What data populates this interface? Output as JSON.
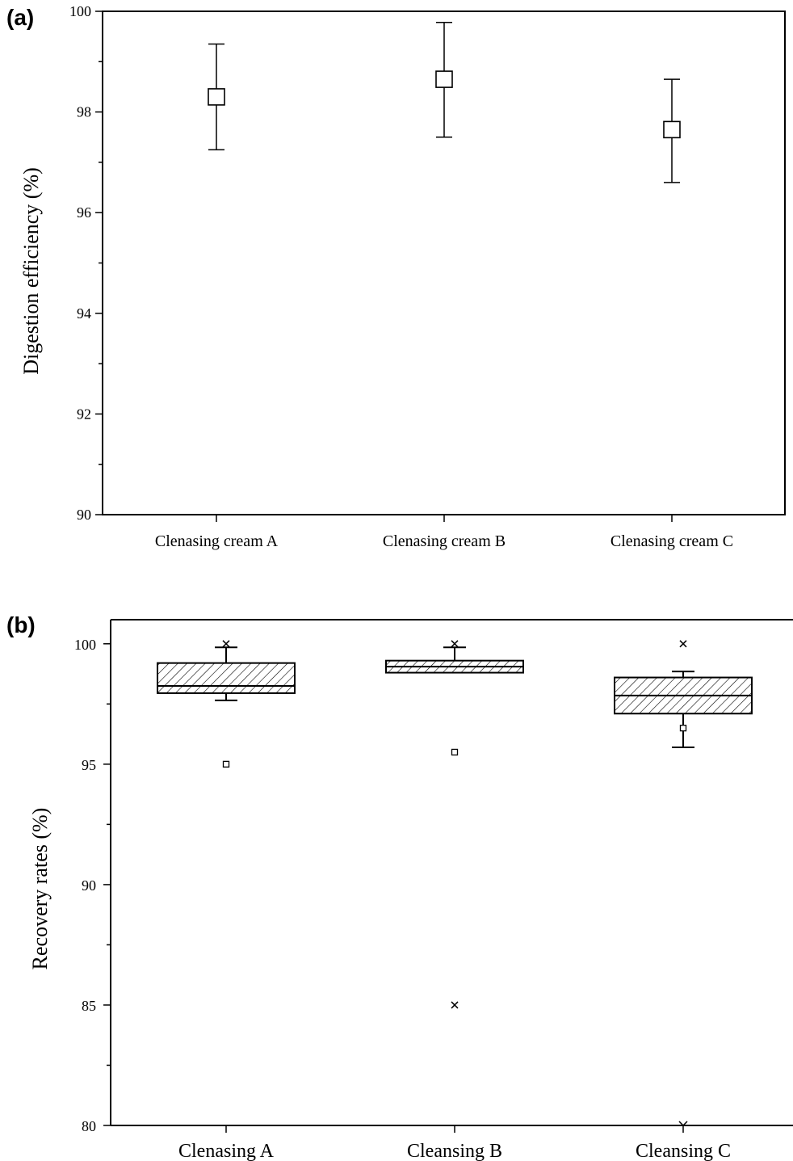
{
  "chart_data": [
    {
      "panel": "(a)",
      "type": "scatter",
      "ylabel": "Digestion efficiency (%)",
      "ylim": [
        90,
        100
      ],
      "yticks": [
        90,
        92,
        94,
        96,
        98,
        100
      ],
      "categories": [
        "Clenasing cream A",
        "Clenasing cream B",
        "Clenasing cream C"
      ],
      "points": [
        {
          "category": "Clenasing cream A",
          "mean": 98.3,
          "err_low": 97.25,
          "err_high": 99.35
        },
        {
          "category": "Clenasing cream B",
          "mean": 98.65,
          "err_low": 97.5,
          "err_high": 99.78
        },
        {
          "category": "Clenasing cream C",
          "mean": 97.65,
          "err_low": 96.6,
          "err_high": 98.65
        }
      ],
      "marker": "open-square"
    },
    {
      "panel": "(b)",
      "type": "box",
      "ylabel": "Recovery rates (%)",
      "ylim": [
        80,
        101
      ],
      "yticks": [
        80,
        85,
        90,
        95,
        100
      ],
      "categories": [
        "Clenasing A",
        "Cleansing B",
        "Cleansing C"
      ],
      "boxes": [
        {
          "category": "Clenasing A",
          "whisker_low": 97.65,
          "q1": 97.95,
          "median": 98.25,
          "q3": 99.2,
          "whisker_high": 99.85,
          "mean": 95.0,
          "max": 100.0,
          "min": null
        },
        {
          "category": "Cleansing B",
          "whisker_low": null,
          "q1": 98.8,
          "median": 99.05,
          "q3": 99.3,
          "whisker_high": 99.85,
          "mean": 95.5,
          "max": 100.0,
          "min": 85.0
        },
        {
          "category": "Cleansing C",
          "whisker_low": 95.7,
          "q1": 97.1,
          "median": 97.85,
          "q3": 98.6,
          "whisker_high": 98.85,
          "mean": 96.5,
          "max": 100.0,
          "min": 80.0
        }
      ],
      "fill": "hatched"
    }
  ]
}
